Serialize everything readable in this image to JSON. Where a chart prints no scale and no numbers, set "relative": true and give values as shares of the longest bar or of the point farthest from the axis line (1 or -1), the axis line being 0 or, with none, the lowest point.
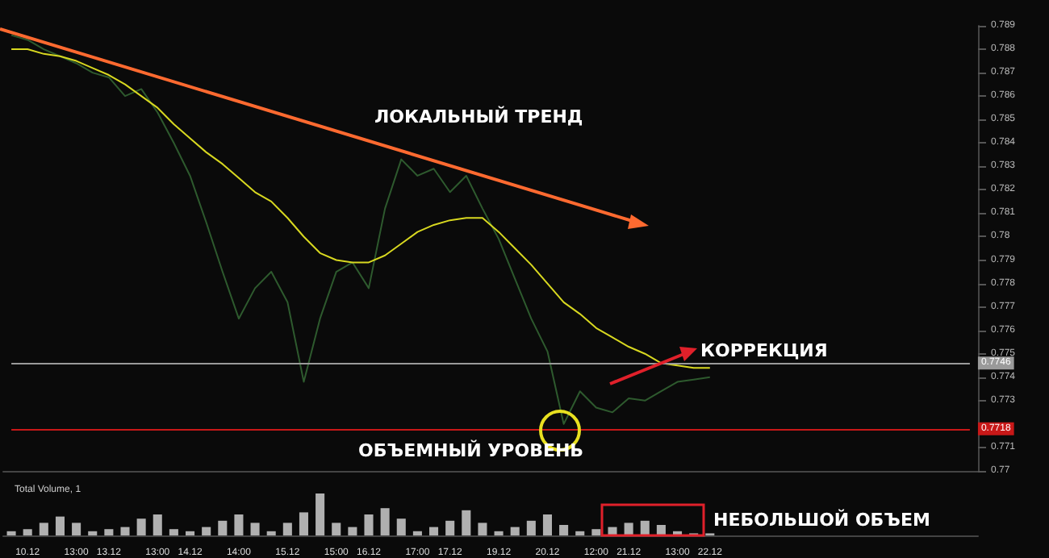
{
  "chart_data": [
    {
      "type": "line",
      "categories": [
        null,
        null,
        null,
        null,
        null,
        null,
        null,
        null,
        null,
        null,
        null,
        null,
        null,
        null,
        null,
        null,
        null,
        null,
        null,
        null,
        null,
        null,
        null,
        null,
        null,
        null,
        null,
        null,
        null,
        null,
        null,
        null,
        null,
        null,
        null,
        null,
        null,
        null,
        null,
        null,
        null,
        null,
        null,
        null,
        null,
        null,
        null,
        null,
        null,
        null,
        null,
        null,
        null,
        null,
        null,
        null,
        null,
        null,
        null,
        null
      ],
      "series": [
        {
          "color": "#2e5a2e",
          "values": [
            0.7886,
            0.7884,
            0.788,
            0.7877,
            0.7874,
            0.787,
            0.7868,
            0.786,
            0.7863,
            0.7853,
            0.784,
            0.7826,
            0.7806,
            0.7785,
            0.7765,
            0.7778,
            0.7785,
            0.7772,
            0.7738,
            0.7765,
            0.7785,
            0.7789,
            0.7778,
            0.7812,
            0.7833,
            0.7826,
            0.7829,
            0.7819,
            0.7826,
            0.7812,
            0.7799,
            0.7782,
            0.7765,
            0.7751,
            0.772,
            0.7734,
            0.7727,
            0.7725,
            0.7731,
            0.773,
            0.7734,
            0.7738,
            0.7739,
            0.774,
            null,
            null,
            null,
            null,
            null,
            null,
            null,
            null,
            null,
            null,
            null,
            null,
            null,
            null,
            null,
            null
          ]
        },
        {
          "color": "#d8d820",
          "values": [
            0.788,
            0.788,
            0.7878,
            0.7877,
            0.7875,
            0.7872,
            0.7869,
            0.7865,
            0.786,
            0.7855,
            0.7848,
            0.7842,
            0.7836,
            0.7831,
            0.7825,
            0.7819,
            0.7815,
            0.7808,
            0.78,
            0.7793,
            0.779,
            0.7789,
            0.7789,
            0.7792,
            0.7797,
            0.7802,
            0.7805,
            0.7807,
            0.7808,
            0.7808,
            0.7802,
            0.7795,
            0.7788,
            0.778,
            0.7772,
            0.7767,
            0.7761,
            0.7757,
            0.7753,
            0.775,
            0.7746,
            0.7745,
            0.7744,
            0.7744,
            null,
            null,
            null,
            null,
            null,
            null,
            null,
            null,
            null,
            null,
            null,
            null,
            null,
            null,
            null,
            null
          ]
        }
      ],
      "ylim": [
        0.77,
        0.789
      ],
      "yticks": [
        0.77,
        0.771,
        0.773,
        0.774,
        0.775,
        0.776,
        0.777,
        0.778,
        0.779,
        0.78,
        0.781,
        0.782,
        0.783,
        0.784,
        0.785,
        0.786,
        0.787,
        0.788,
        0.789
      ],
      "tick_labels": "y",
      "marker": "none",
      "ref_lines": [
        {
          "axis": "y",
          "value": 0.7746,
          "label": "0.7746",
          "color": "#9a9a9a"
        },
        {
          "axis": "y",
          "value": 0.7718,
          "label": "0.7718",
          "color": "#c81818"
        }
      ],
      "annotations": [
        "ЛОКАЛЬНЫЙ ТРЕНД",
        "КОРРЕКЦИЯ",
        "ОБЪЕМНЫЙ УРОВЕНЬ"
      ]
    },
    {
      "type": "bar",
      "relative": true,
      "title": "Total Volume, 1",
      "color": "#b0b0b0",
      "tick_labels": "x",
      "categories": [
        null,
        "10.12",
        null,
        null,
        "13:00",
        null,
        "13.12",
        null,
        null,
        "13:00",
        null,
        "14.12",
        null,
        null,
        "14:00",
        null,
        null,
        "15.12",
        null,
        null,
        "15:00",
        null,
        "16.12",
        null,
        null,
        "17:00",
        null,
        "17.12",
        null,
        null,
        "19.12",
        null,
        null,
        "20.12",
        null,
        null,
        "12:00",
        null,
        "21.12",
        null,
        null,
        "13:00",
        null,
        "22.12",
        null,
        null,
        null,
        null,
        null,
        null,
        null,
        null,
        null,
        null,
        null,
        null,
        null,
        null,
        null,
        null
      ],
      "values": [
        0.1,
        0.15,
        0.3,
        0.45,
        0.3,
        0.1,
        0.15,
        0.2,
        0.4,
        0.5,
        0.15,
        0.1,
        0.2,
        0.35,
        0.5,
        0.3,
        0.1,
        0.3,
        0.55,
        1.0,
        0.3,
        0.2,
        0.5,
        0.65,
        0.4,
        0.1,
        0.2,
        0.35,
        0.6,
        0.3,
        0.1,
        0.2,
        0.35,
        0.5,
        0.25,
        0.1,
        0.15,
        0.2,
        0.3,
        0.35,
        0.25,
        0.1,
        0.05,
        0.05,
        null,
        null,
        null,
        null,
        null,
        null,
        null,
        null,
        null,
        null,
        null,
        null,
        null,
        null,
        null,
        null
      ],
      "annotations": [
        "НЕБОЛЬШОЙ ОБЪЕМ"
      ]
    }
  ]
}
